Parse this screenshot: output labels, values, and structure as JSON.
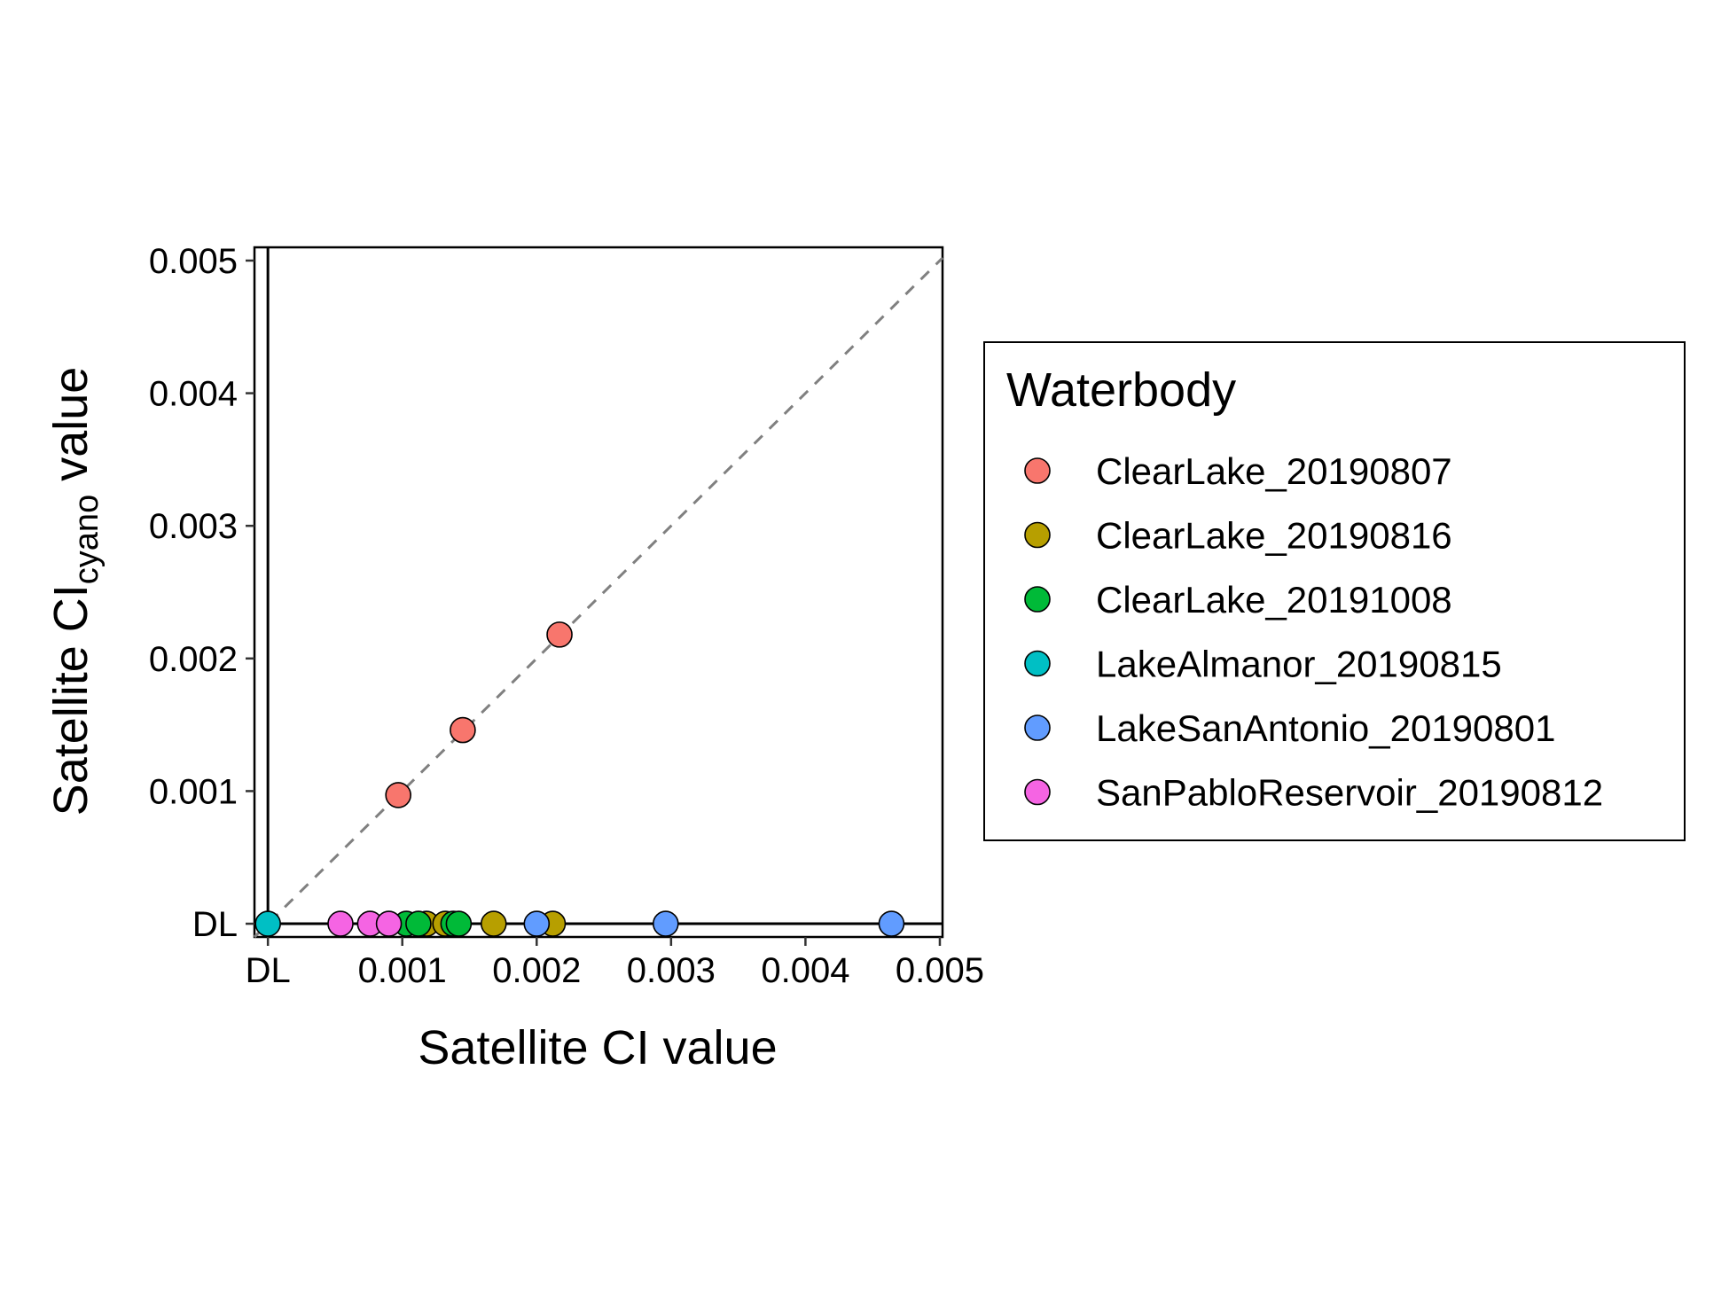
{
  "chart_data": {
    "type": "scatter",
    "xlabel": "Satellite CI value",
    "ylabel": {
      "prefix": "Satellite CI",
      "subscript": "cyano",
      "suffix": " value"
    },
    "xlim": [
      -0.0001,
      0.00502
    ],
    "ylim": [
      -0.0001,
      0.0051
    ],
    "x_ticks": [
      {
        "value": 0,
        "label": "DL"
      },
      {
        "value": 0.001,
        "label": "0.001"
      },
      {
        "value": 0.002,
        "label": "0.002"
      },
      {
        "value": 0.003,
        "label": "0.003"
      },
      {
        "value": 0.004,
        "label": "0.004"
      },
      {
        "value": 0.005,
        "label": "0.005"
      }
    ],
    "y_ticks": [
      {
        "value": 0,
        "label": "DL"
      },
      {
        "value": 0.001,
        "label": "0.001"
      },
      {
        "value": 0.002,
        "label": "0.002"
      },
      {
        "value": 0.003,
        "label": "0.003"
      },
      {
        "value": 0.004,
        "label": "0.004"
      },
      {
        "value": 0.005,
        "label": "0.005"
      }
    ],
    "reference_line": "y = x (dashed gray)",
    "grid": false,
    "legend": {
      "title": "Waterbody",
      "placement": "right"
    },
    "series": [
      {
        "name": "ClearLake_20190807",
        "color": "#F8766D",
        "points": [
          {
            "x": 0.00097,
            "y": 0.00097
          },
          {
            "x": 0.00145,
            "y": 0.00146
          },
          {
            "x": 0.00217,
            "y": 0.00218
          }
        ]
      },
      {
        "name": "ClearLake_20190816",
        "color": "#B79F00",
        "points": [
          {
            "x": 0.00118,
            "y": 0
          },
          {
            "x": 0.00132,
            "y": 0
          },
          {
            "x": 0.00168,
            "y": 0
          },
          {
            "x": 0.00212,
            "y": 0
          }
        ]
      },
      {
        "name": "ClearLake_20191008",
        "color": "#00BA38",
        "points": [
          {
            "x": 0.00103,
            "y": 0
          },
          {
            "x": 0.00112,
            "y": 0
          },
          {
            "x": 0.00138,
            "y": 0
          },
          {
            "x": 0.00142,
            "y": 0
          }
        ]
      },
      {
        "name": "LakeAlmanor_20190815",
        "color": "#00BFC4",
        "points": [
          {
            "x": 0,
            "y": 0
          }
        ]
      },
      {
        "name": "LakeSanAntonio_20190801",
        "color": "#619CFF",
        "points": [
          {
            "x": 0.002,
            "y": 0
          },
          {
            "x": 0.00296,
            "y": 0
          },
          {
            "x": 0.00464,
            "y": 0
          }
        ]
      },
      {
        "name": "SanPabloReservoir_20190812",
        "color": "#F564E3",
        "points": [
          {
            "x": 0.00054,
            "y": 0
          },
          {
            "x": 0.00076,
            "y": 0
          },
          {
            "x": 0.0009,
            "y": 0
          }
        ]
      }
    ]
  }
}
